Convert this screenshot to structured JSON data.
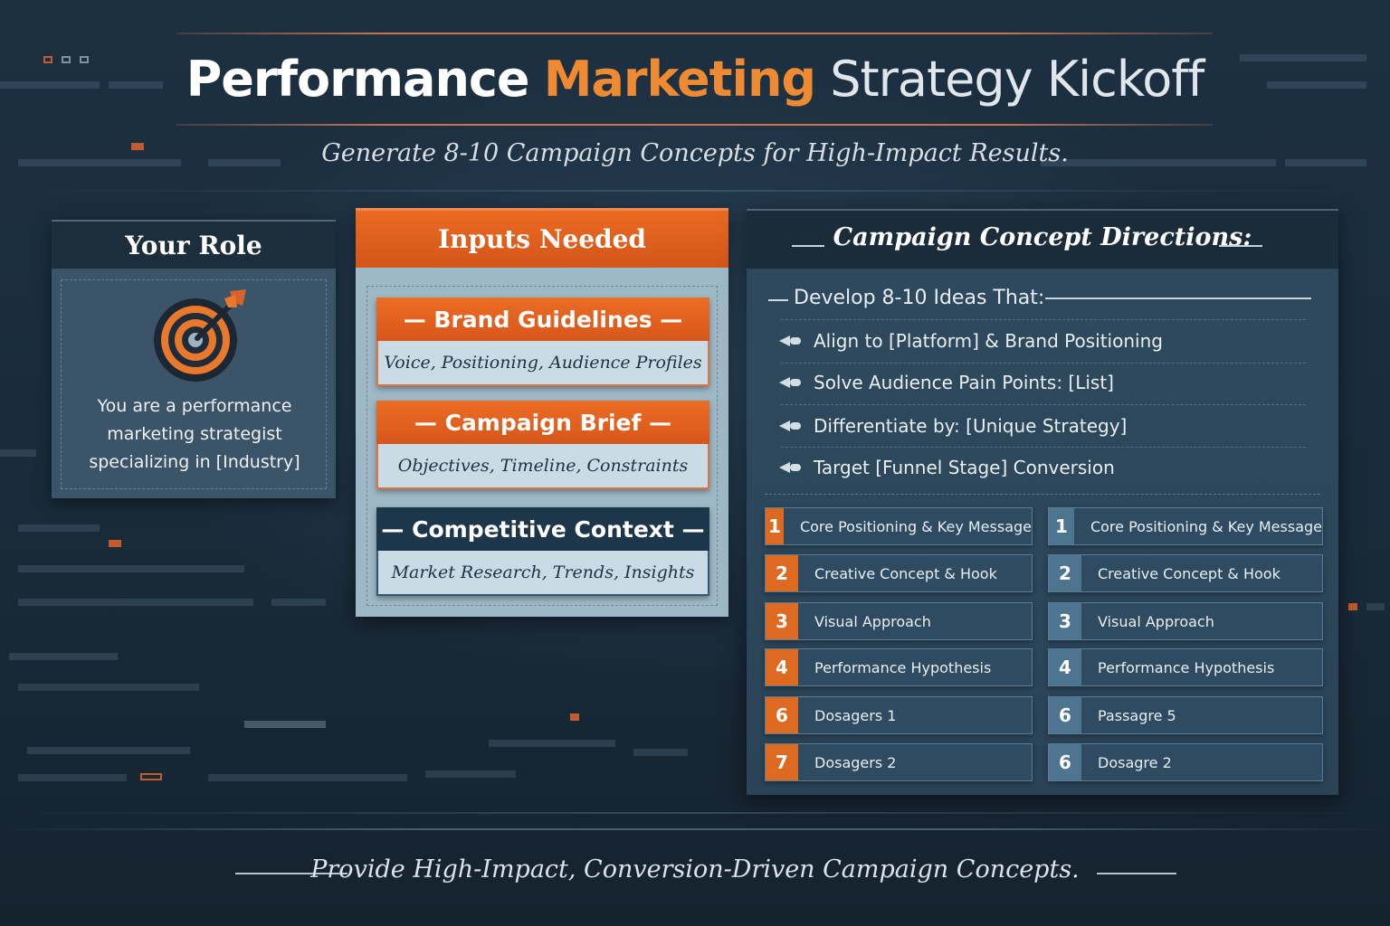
{
  "header": {
    "title_part1": "Performance",
    "title_part2": "Marketing",
    "title_part3": "Strategy Kickoff",
    "subtitle": "Generate 8-10 Campaign Concepts for High-Impact Results."
  },
  "role": {
    "heading": "Your Role",
    "icon": "target-icon",
    "line1": "You are a performance",
    "line2": "marketing strategist",
    "line3": "specializing in [Industry]"
  },
  "inputs": {
    "heading": "Inputs Needed",
    "cards": [
      {
        "title": "— Brand Guidelines —",
        "detail": "Voice, Positioning, Audience Profiles"
      },
      {
        "title": "— Campaign Brief —",
        "detail": "Objectives, Timeline, Constraints"
      },
      {
        "title": "— Competitive Context —",
        "detail": "Market Research, Trends, Insights"
      }
    ]
  },
  "directions": {
    "heading": "Campaign Concept Directions:",
    "develop": "Develop 8-10 Ideas That:",
    "bullets": [
      "Align to [Platform] & Brand Positioning",
      "Solve Audience Pain Points: [List]",
      "Differentiate by: [Unique Strategy]",
      "Target [Funnel Stage] Conversion"
    ],
    "left_items": [
      {
        "num": "1",
        "label": "Core Positioning & Key Message"
      },
      {
        "num": "2",
        "label": "Creative Concept & Hook"
      },
      {
        "num": "3",
        "label": "Visual Approach"
      },
      {
        "num": "4",
        "label": "Performance Hypothesis"
      },
      {
        "num": "6",
        "label": "Dosagers 1"
      },
      {
        "num": "7",
        "label": "Dosagers 2"
      }
    ],
    "right_items": [
      {
        "num": "1",
        "label": "Core Positioning & Key Message"
      },
      {
        "num": "2",
        "label": "Creative Concept & Hook"
      },
      {
        "num": "3",
        "label": "Visual Approach"
      },
      {
        "num": "4",
        "label": "Performance Hypothesis"
      },
      {
        "num": "6",
        "label": "Passagre 5"
      },
      {
        "num": "6",
        "label": "Dosagre 2"
      }
    ],
    "bullet_icon": "arrow-bullet-icon"
  },
  "footer": {
    "tagline": "Provide High-Impact, Conversion-Driven Campaign Concepts."
  },
  "colors": {
    "accent_orange": "#e8692a",
    "navy": "#1c2d3c",
    "steel_blue": "#4e7590"
  }
}
